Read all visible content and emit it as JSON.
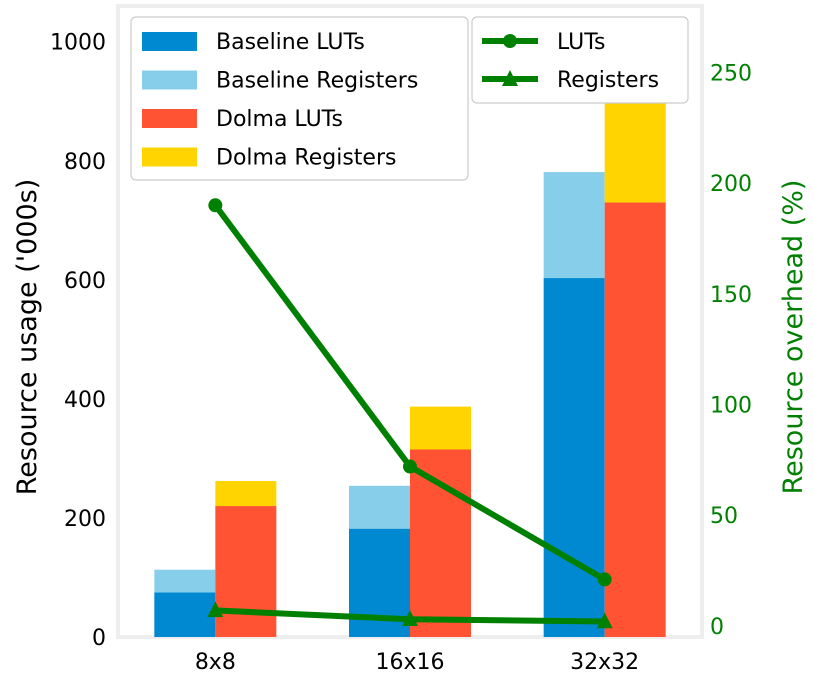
{
  "chart_data": {
    "type": "bar",
    "categories": [
      "8x8",
      "16x16",
      "32x32"
    ],
    "ylabel": "Resource usage ('000s)",
    "ylabel_right": "Resource overhead (%)",
    "ylim": [
      0,
      1060
    ],
    "ylim_right": [
      -5,
      280
    ],
    "yticks": [
      0,
      200,
      400,
      600,
      800,
      1000
    ],
    "yticks_right": [
      0,
      50,
      100,
      150,
      200,
      250
    ],
    "grid": false,
    "bar_groups": [
      {
        "name": "Baseline",
        "stack": [
          {
            "name": "Baseline LUTs",
            "values": [
              75,
              182,
              603
            ],
            "color": "#0088D1"
          },
          {
            "name": "Baseline Registers",
            "values": [
              38,
              72,
              178
            ],
            "color": "#87CEEB"
          }
        ]
      },
      {
        "name": "Dolma",
        "stack": [
          {
            "name": "Dolma LUTs",
            "values": [
              220,
              315,
              730
            ],
            "color": "#FF5333"
          },
          {
            "name": "Dolma Registers",
            "values": [
              42,
              72,
              180
            ],
            "color": "#FFD400"
          }
        ]
      }
    ],
    "line_series": [
      {
        "name": "LUTs",
        "values": [
          190,
          72,
          21
        ],
        "marker": "circle",
        "color": "#008000",
        "axis": "right"
      },
      {
        "name": "Registers",
        "values": [
          7,
          3,
          2
        ],
        "marker": "triangle",
        "color": "#008000",
        "axis": "right"
      }
    ],
    "legend_bars_placement": "top-left",
    "legend_lines_placement": "top-right"
  },
  "colors": {
    "right_axis": "#008000",
    "frame": "#EEEEEE"
  }
}
